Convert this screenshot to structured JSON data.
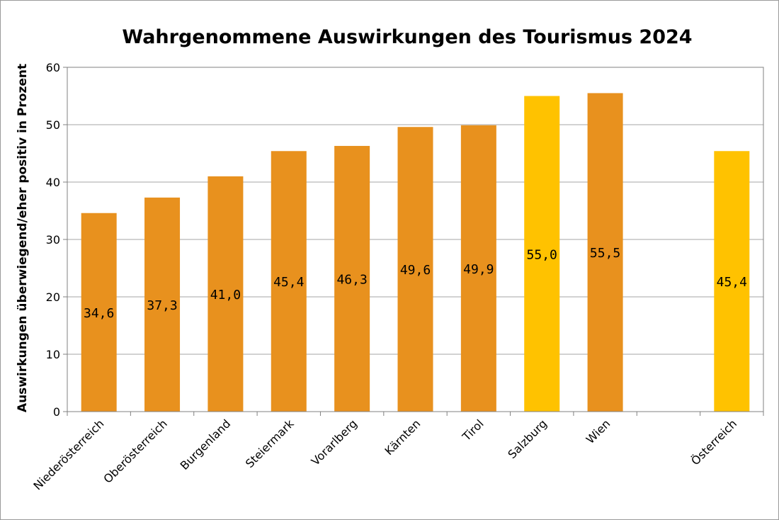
{
  "chart_data": {
    "type": "bar",
    "title": "Wahrgenommene Auswirkungen des Tourismus 2024",
    "xlabel": "",
    "ylabel": "Auswirkungen überwiegend/eher positiv in Prozent",
    "ylim": [
      0,
      60
    ],
    "yticks": [
      "0",
      "10",
      "20",
      "30",
      "40",
      "50",
      "60"
    ],
    "grid": true,
    "legend": "none",
    "categories": [
      "Niederösterreich",
      "Oberösterreich",
      "Burgenland",
      "Steiermark",
      "Vorarlberg",
      "Kärnten",
      "Tirol",
      "Salzburg",
      "Wien",
      "",
      "Österreich"
    ],
    "values": [
      34.6,
      37.3,
      41.0,
      45.4,
      46.3,
      49.6,
      49.9,
      55.0,
      55.5,
      null,
      45.4
    ],
    "value_labels": [
      "34,6",
      "37,3",
      "41,0",
      "45,4",
      "46,3",
      "49,6",
      "49,9",
      "55,0",
      "55,5",
      "",
      "45,4"
    ],
    "colors": [
      "#E8911E",
      "#E8911E",
      "#E8911E",
      "#E8911E",
      "#E8911E",
      "#E8911E",
      "#E8911E",
      "#FFC200",
      "#E8911E",
      "",
      "#FFC200"
    ],
    "grid_color": "#a6a6a6",
    "axis_color": "#808080"
  }
}
